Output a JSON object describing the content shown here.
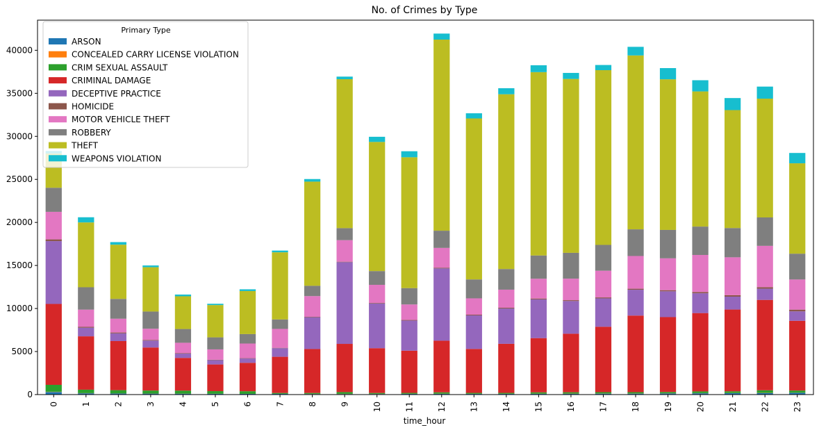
{
  "chart_data": {
    "type": "bar",
    "stacked": true,
    "title": "No. of Crimes by Type",
    "xlabel": "time_hour",
    "ylabel": "",
    "ylim": [
      0,
      43500
    ],
    "yticks": [
      0,
      5000,
      10000,
      15000,
      20000,
      25000,
      30000,
      35000,
      40000
    ],
    "grid": false,
    "legend_title": "Primary Type",
    "legend_position": "top-left",
    "categories": [
      "0",
      "1",
      "2",
      "3",
      "4",
      "5",
      "6",
      "7",
      "8",
      "9",
      "10",
      "11",
      "12",
      "13",
      "14",
      "15",
      "16",
      "17",
      "18",
      "19",
      "20",
      "21",
      "22",
      "23"
    ],
    "series": [
      {
        "name": "ARSON",
        "color": "#1f77b4",
        "values": [
          300,
          150,
          120,
          110,
          100,
          90,
          80,
          80,
          70,
          70,
          70,
          80,
          90,
          80,
          80,
          90,
          100,
          110,
          110,
          130,
          150,
          160,
          180,
          200
        ]
      },
      {
        "name": "CONCEALED CARRY LICENSE VIOLATION",
        "color": "#ff7f0e",
        "values": [
          30,
          20,
          15,
          10,
          10,
          10,
          10,
          10,
          20,
          20,
          20,
          20,
          20,
          20,
          20,
          20,
          20,
          20,
          20,
          20,
          20,
          20,
          20,
          20
        ]
      },
      {
        "name": "CRIM SEXUAL ASSAULT",
        "color": "#2ca02c",
        "values": [
          800,
          400,
          380,
          350,
          350,
          300,
          300,
          100,
          100,
          200,
          100,
          100,
          150,
          100,
          100,
          150,
          150,
          150,
          150,
          150,
          200,
          200,
          300,
          250
        ]
      },
      {
        "name": "CRIMINAL DAMAGE",
        "color": "#d62728",
        "values": [
          9400,
          6200,
          5700,
          5000,
          3800,
          3100,
          3300,
          4200,
          5100,
          5600,
          5200,
          4900,
          6000,
          5100,
          5700,
          6300,
          6800,
          7600,
          8900,
          8700,
          9100,
          9500,
          10500,
          8100
        ]
      },
      {
        "name": "DECEPTIVE PRACTICE",
        "color": "#9467bd",
        "values": [
          7300,
          1000,
          900,
          800,
          500,
          500,
          500,
          1000,
          3700,
          9500,
          5200,
          3500,
          8400,
          3900,
          4100,
          4500,
          3800,
          3300,
          3000,
          3000,
          2300,
          1500,
          1300,
          1100
        ]
      },
      {
        "name": "HOMICIDE",
        "color": "#8c564b",
        "values": [
          200,
          100,
          100,
          80,
          60,
          50,
          40,
          40,
          50,
          50,
          60,
          70,
          80,
          80,
          90,
          100,
          100,
          110,
          120,
          130,
          150,
          170,
          180,
          200
        ]
      },
      {
        "name": "MOTOR VEHICLE THEFT",
        "color": "#e377c2",
        "values": [
          3200,
          2000,
          1600,
          1300,
          1200,
          1200,
          1700,
          2200,
          2400,
          2500,
          2100,
          1800,
          2300,
          1900,
          2100,
          2300,
          2500,
          3100,
          3800,
          3700,
          4300,
          4400,
          4800,
          3500
        ]
      },
      {
        "name": "ROBBERY",
        "color": "#7f7f7f",
        "values": [
          2800,
          2600,
          2300,
          2000,
          1600,
          1400,
          1100,
          1100,
          1200,
          1400,
          1600,
          1900,
          2000,
          2200,
          2400,
          2700,
          3000,
          3000,
          3100,
          3300,
          3300,
          3400,
          3300,
          3000
        ]
      },
      {
        "name": "THEFT",
        "color": "#bcbd22",
        "values": [
          3970,
          7530,
          6300,
          5150,
          3800,
          3750,
          5000,
          7800,
          12100,
          17300,
          15000,
          15200,
          22200,
          18700,
          20300,
          21300,
          20200,
          20300,
          20200,
          17500,
          15700,
          13700,
          13800,
          10500
        ]
      },
      {
        "name": "WEAPONS VIOLATION",
        "color": "#17becf",
        "values": [
          300,
          600,
          300,
          200,
          200,
          150,
          200,
          200,
          300,
          300,
          600,
          700,
          700,
          600,
          700,
          800,
          700,
          600,
          1000,
          1300,
          1300,
          1400,
          1400,
          1200
        ]
      }
    ]
  }
}
